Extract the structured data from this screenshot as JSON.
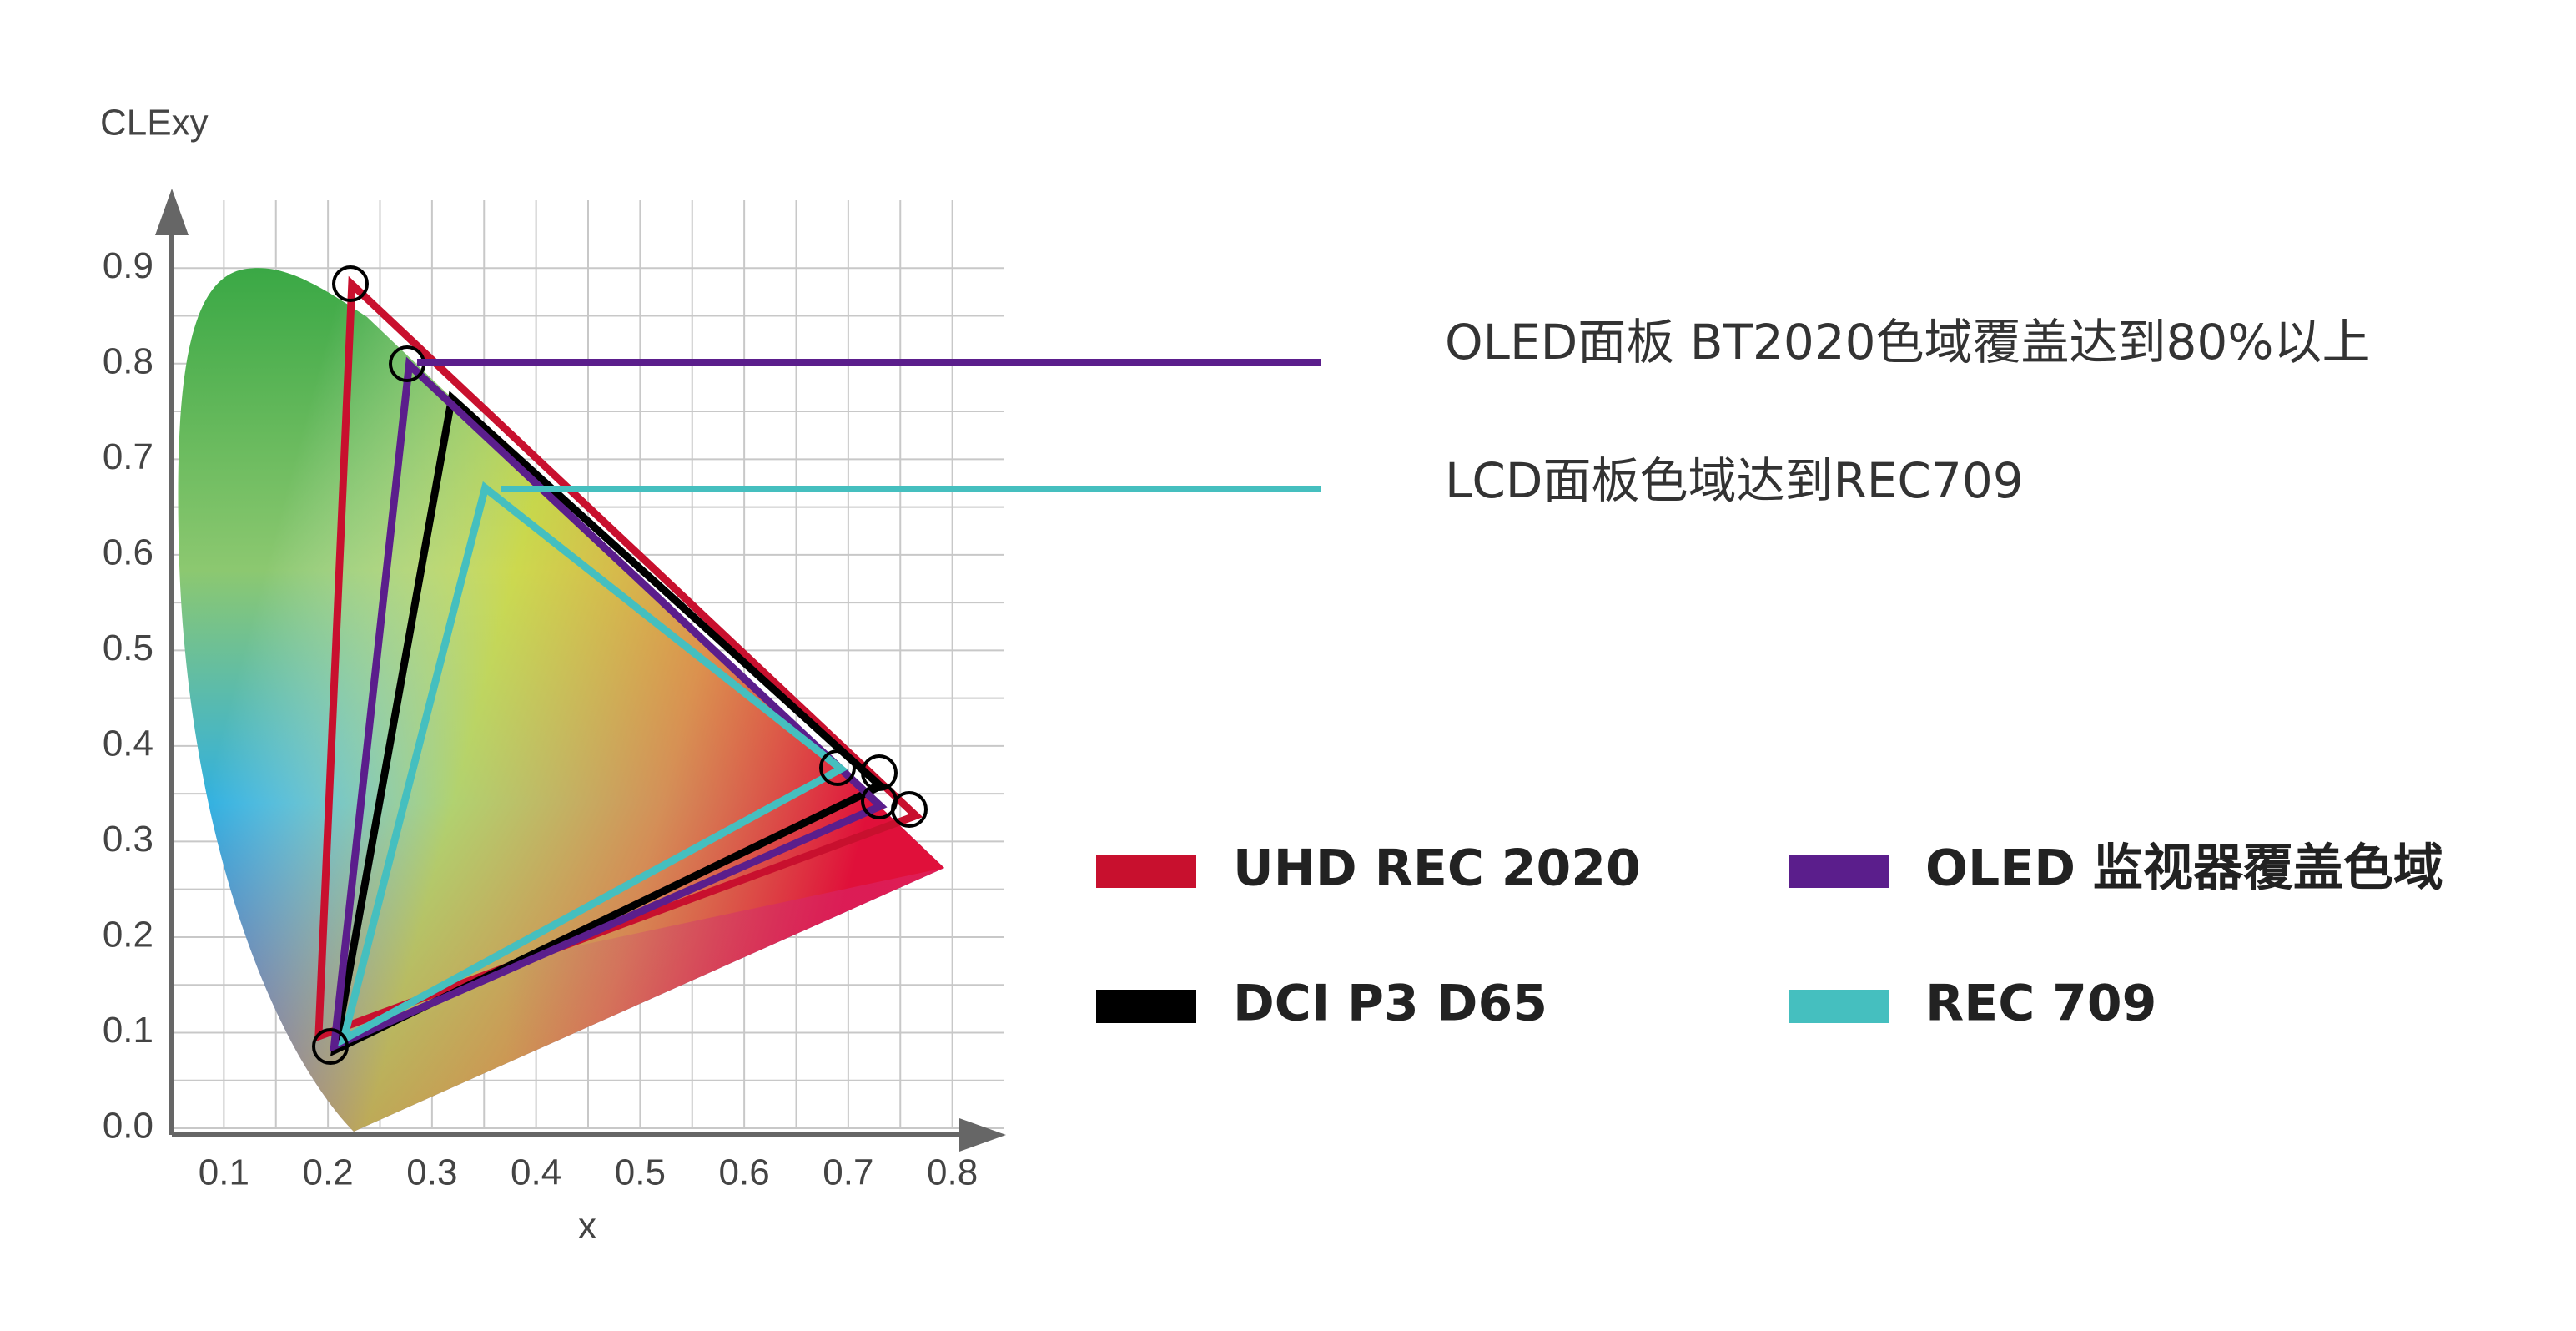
{
  "chart_data": {
    "type": "gamut",
    "title": "CLExy",
    "xlabel": "x",
    "xlim": [
      0.05,
      0.85
    ],
    "ylim": [
      0,
      0.95
    ],
    "xticks": [
      0.1,
      0.2,
      0.3,
      0.4,
      0.5,
      0.6,
      0.7,
      0.8
    ],
    "yticks": [
      {
        "value": 0,
        "label": "0.0"
      },
      0.1,
      0.2,
      0.3,
      0.4,
      0.5,
      0.6,
      0.7,
      0.8,
      0.9
    ],
    "grid": true,
    "series": [
      {
        "name": "UHD REC 2020",
        "color": "#c8102e",
        "x": [
          0.223,
          0.765,
          0.191
        ],
        "y": [
          0.883,
          0.327,
          0.096
        ]
      },
      {
        "name": "DCI P3 D65",
        "color": "#000000",
        "x": [
          0.319,
          0.731,
          0.207
        ],
        "y": [
          0.764,
          0.358,
          0.082
        ]
      },
      {
        "name": "OLED 监视器覆盖色域",
        "color": "#5b1e8c",
        "x": [
          0.278,
          0.731,
          0.206
        ],
        "y": [
          0.799,
          0.337,
          0.086
        ]
      },
      {
        "name": "REC 709",
        "color": "#45bfbf",
        "x": [
          0.351,
          0.693,
          0.215
        ],
        "y": [
          0.67,
          0.376,
          0.093
        ]
      }
    ],
    "annotations": [
      "OLED面板 BT2020色域覆盖达到80%以上",
      "LCD面板色域达到REC709"
    ]
  }
}
